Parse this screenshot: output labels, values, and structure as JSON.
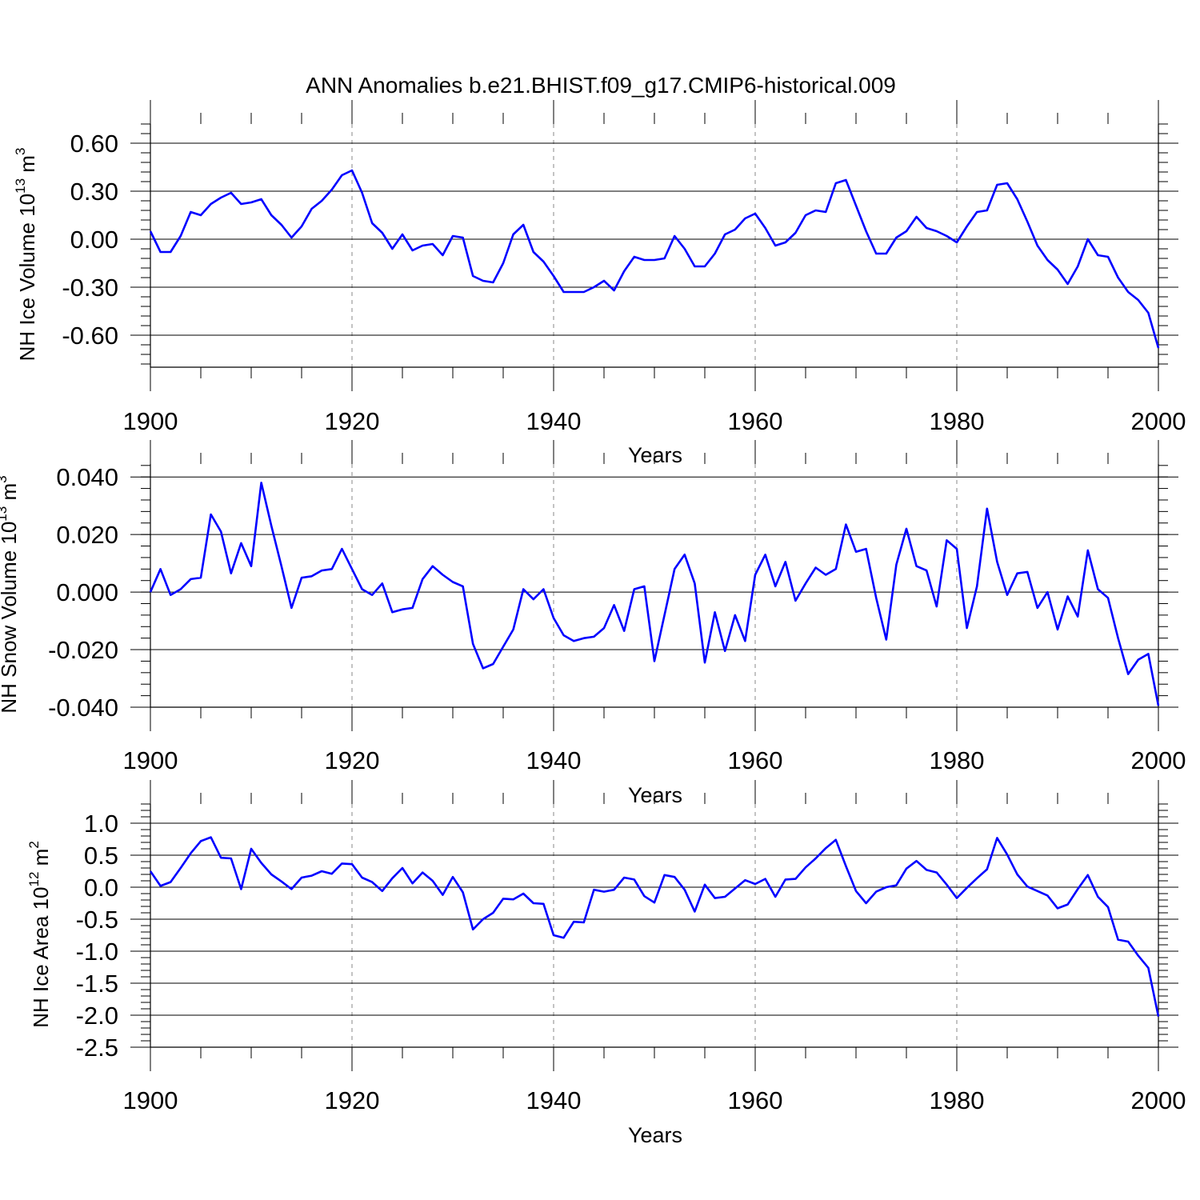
{
  "figure": {
    "title": "ANN Anomalies b.e21.BHIST.f09_g17.CMIP6-historical.009",
    "line_color": "#0000ff",
    "grid_color": "#888888"
  },
  "chart_data": [
    {
      "type": "line",
      "ylabel_main": "NH Ice Volume 10",
      "ylabel_exp": "13",
      "ylabel_unit": " m",
      "ylabel_unit_exp": "3",
      "xlabel": "Years",
      "xlim": [
        1900,
        2000
      ],
      "ylim": [
        -0.8,
        0.72
      ],
      "yticks": [
        0.6,
        0.3,
        0.0,
        -0.3,
        -0.6
      ],
      "ytick_labels": [
        "0.60",
        "0.30",
        "0.00",
        "-0.30",
        "-0.60"
      ],
      "xticks": [
        1900,
        1920,
        1940,
        1960,
        1980,
        2000
      ],
      "xtick_labels": [
        "1900",
        "1920",
        "1940",
        "1960",
        "1980",
        "2000"
      ],
      "grid_x": [
        1920,
        1940,
        1960,
        1980
      ],
      "x_start": 1900,
      "values": [
        0.05,
        -0.08,
        -0.08,
        0.02,
        0.17,
        0.15,
        0.22,
        0.26,
        0.29,
        0.22,
        0.23,
        0.25,
        0.15,
        0.09,
        0.01,
        0.08,
        0.19,
        0.24,
        0.31,
        0.4,
        0.43,
        0.29,
        0.1,
        0.04,
        -0.06,
        0.03,
        -0.07,
        -0.04,
        -0.03,
        -0.1,
        0.02,
        0.01,
        -0.23,
        -0.26,
        -0.27,
        -0.15,
        0.03,
        0.09,
        -0.08,
        -0.14,
        -0.23,
        -0.33,
        -0.33,
        -0.33,
        -0.3,
        -0.26,
        -0.32,
        -0.2,
        -0.11,
        -0.13,
        -0.13,
        -0.12,
        0.02,
        -0.06,
        -0.17,
        -0.17,
        -0.09,
        0.03,
        0.06,
        0.13,
        0.16,
        0.07,
        -0.04,
        -0.02,
        0.04,
        0.15,
        0.18,
        0.17,
        0.35,
        0.37,
        0.21,
        0.05,
        -0.09,
        -0.09,
        0.01,
        0.05,
        0.14,
        0.07,
        0.05,
        0.02,
        -0.02,
        0.08,
        0.17,
        0.18,
        0.34,
        0.35,
        0.25,
        0.11,
        -0.04,
        -0.13,
        -0.19,
        -0.28,
        -0.17,
        0.0,
        -0.1,
        -0.11,
        -0.24,
        -0.33,
        -0.38,
        -0.46,
        -0.68
      ]
    },
    {
      "type": "line",
      "ylabel_main": "NH Snow Volume 10",
      "ylabel_exp": "13",
      "ylabel_unit": " m",
      "ylabel_unit_exp": "3",
      "xlabel": "Years",
      "xlim": [
        1900,
        2000
      ],
      "ylim": [
        -0.04,
        0.0445
      ],
      "yticks": [
        0.04,
        0.02,
        0.0,
        -0.02,
        -0.04
      ],
      "ytick_labels": [
        "0.040",
        "0.020",
        "0.000",
        "-0.020",
        "-0.040"
      ],
      "xticks": [
        1900,
        1920,
        1940,
        1960,
        1980,
        2000
      ],
      "xtick_labels": [
        "1900",
        "1920",
        "1940",
        "1960",
        "1980",
        "2000"
      ],
      "grid_x": [
        1920,
        1940,
        1960,
        1980
      ],
      "x_start": 1900,
      "values": [
        0.0,
        0.008,
        -0.001,
        0.001,
        0.0045,
        0.005,
        0.027,
        0.021,
        0.0065,
        0.017,
        0.009,
        0.038,
        0.023,
        0.009,
        -0.0055,
        0.005,
        0.0055,
        0.0075,
        0.008,
        0.015,
        0.008,
        0.001,
        -0.001,
        0.003,
        -0.007,
        -0.006,
        -0.0055,
        0.0045,
        0.009,
        0.006,
        0.0035,
        0.002,
        -0.018,
        -0.0265,
        -0.025,
        -0.019,
        -0.013,
        0.001,
        -0.0025,
        0.001,
        -0.009,
        -0.015,
        -0.017,
        -0.016,
        -0.0155,
        -0.0125,
        -0.0045,
        -0.0135,
        0.001,
        0.002,
        -0.024,
        -0.008,
        0.008,
        0.013,
        0.003,
        -0.0245,
        -0.007,
        -0.0205,
        -0.008,
        -0.017,
        0.006,
        0.013,
        0.002,
        0.0105,
        -0.003,
        0.003,
        0.0085,
        0.006,
        0.008,
        0.0235,
        0.014,
        0.015,
        -0.002,
        -0.0165,
        0.0095,
        0.022,
        0.009,
        0.0075,
        -0.005,
        0.018,
        0.015,
        -0.0125,
        0.002,
        0.029,
        0.0105,
        -0.001,
        0.0065,
        0.007,
        -0.0055,
        0.0,
        -0.013,
        -0.0015,
        -0.0085,
        0.0145,
        0.001,
        -0.002,
        -0.016,
        -0.0285,
        -0.0235,
        -0.0215,
        -0.0395
      ]
    },
    {
      "type": "line",
      "ylabel_main": "NH Ice Area 10",
      "ylabel_exp": "12",
      "ylabel_unit": " m",
      "ylabel_unit_exp": "2",
      "xlabel": "Years",
      "xlim": [
        1900,
        2000
      ],
      "ylim": [
        -2.5,
        1.3
      ],
      "yticks": [
        1.0,
        0.5,
        0.0,
        -0.5,
        -1.0,
        -1.5,
        -2.0,
        -2.5
      ],
      "ytick_labels": [
        "1.0",
        "0.5",
        "0.0",
        "-0.5",
        "-1.0",
        "-1.5",
        "-2.0",
        "-2.5"
      ],
      "xticks": [
        1900,
        1920,
        1940,
        1960,
        1980,
        2000
      ],
      "xtick_labels": [
        "1900",
        "1920",
        "1940",
        "1960",
        "1980",
        "2000"
      ],
      "grid_x": [
        1920,
        1940,
        1960,
        1980
      ],
      "x_start": 1900,
      "values": [
        0.25,
        0.02,
        0.08,
        0.3,
        0.53,
        0.72,
        0.78,
        0.46,
        0.45,
        -0.03,
        0.6,
        0.38,
        0.2,
        0.09,
        -0.03,
        0.15,
        0.18,
        0.25,
        0.21,
        0.37,
        0.36,
        0.15,
        0.08,
        -0.06,
        0.14,
        0.3,
        0.06,
        0.23,
        0.1,
        -0.12,
        0.16,
        -0.08,
        -0.66,
        -0.5,
        -0.4,
        -0.18,
        -0.19,
        -0.1,
        -0.25,
        -0.26,
        -0.75,
        -0.79,
        -0.54,
        -0.55,
        -0.04,
        -0.07,
        -0.04,
        0.15,
        0.12,
        -0.14,
        -0.24,
        0.19,
        0.16,
        -0.04,
        -0.38,
        0.04,
        -0.17,
        -0.15,
        -0.02,
        0.11,
        0.05,
        0.13,
        -0.15,
        0.12,
        0.13,
        0.31,
        0.45,
        0.61,
        0.74,
        0.33,
        -0.06,
        -0.25,
        -0.07,
        0.0,
        0.03,
        0.29,
        0.41,
        0.27,
        0.23,
        0.04,
        -0.17,
        -0.01,
        0.14,
        0.28,
        0.77,
        0.51,
        0.2,
        0.01,
        -0.06,
        -0.13,
        -0.33,
        -0.27,
        -0.03,
        0.19,
        -0.15,
        -0.31,
        -0.82,
        -0.85,
        -1.07,
        -1.26,
        -2.02
      ]
    }
  ]
}
